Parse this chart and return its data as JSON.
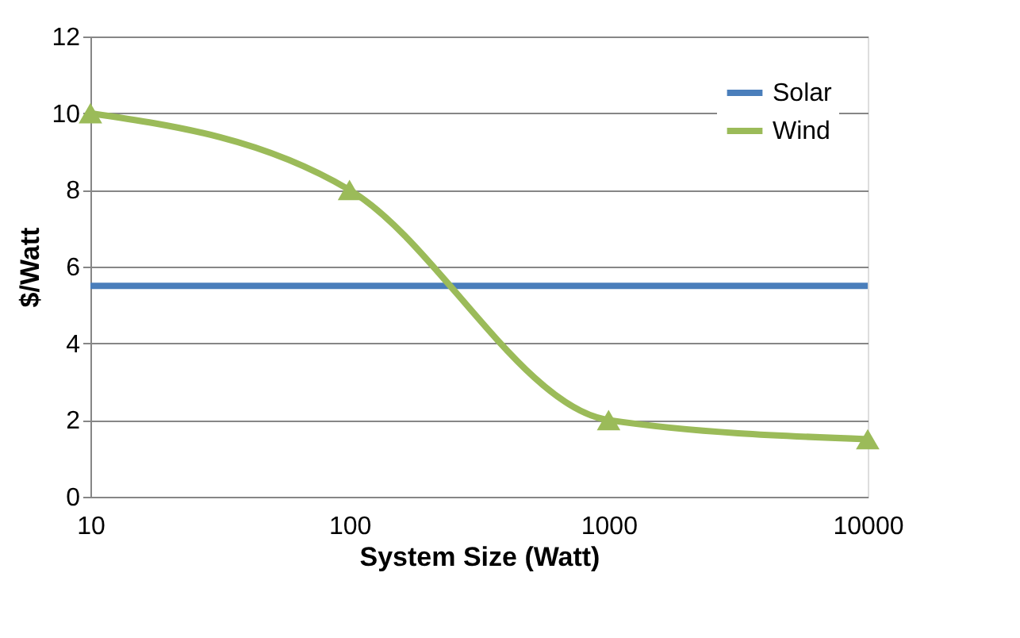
{
  "chart_data": {
    "type": "line",
    "xlabel": "System Size (Watt)",
    "ylabel": "$/Watt",
    "x": [
      10,
      100,
      1000,
      10000
    ],
    "series": [
      {
        "name": "Solar",
        "color": "#4a7ebb",
        "values": [
          5.5,
          5.5,
          5.5,
          5.5
        ],
        "marker": "none"
      },
      {
        "name": "Wind",
        "color": "#9bbb59",
        "values": [
          10,
          8,
          2,
          1.5
        ],
        "marker": "triangle"
      }
    ],
    "log": "x",
    "xlim": [
      10,
      10000
    ],
    "xticks": [
      10,
      100,
      1000,
      10000
    ],
    "ylim": [
      0,
      12
    ],
    "yticks": [
      0,
      2,
      4,
      6,
      8,
      10,
      12
    ],
    "grid": "y",
    "legend": "top right",
    "line_style": "solid"
  }
}
